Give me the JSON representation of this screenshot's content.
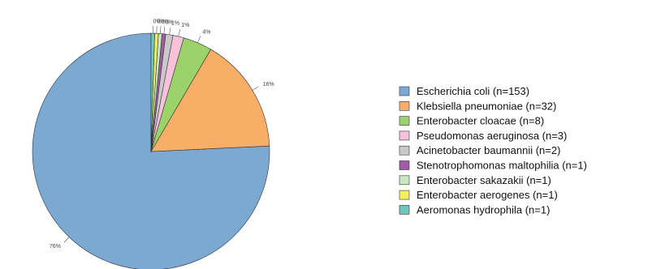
{
  "chart_data": {
    "type": "pie",
    "title": "",
    "legend_position": "right",
    "slices": [
      {
        "name": "Escherichia coli (n=153)",
        "value": 153,
        "pct_label": "76%",
        "color": "#7ba9d2"
      },
      {
        "name": "Klebsiella pneumoniae (n=32)",
        "value": 32,
        "pct_label": "16%",
        "color": "#f9ae67"
      },
      {
        "name": "Enterobacter cloacae (n=8)",
        "value": 8,
        "pct_label": "4%",
        "color": "#9bd36a"
      },
      {
        "name": "Pseudomonas aeruginosa (n=3)",
        "value": 3,
        "pct_label": "1%",
        "color": "#f7c1dc"
      },
      {
        "name": "Acinetobacter baumannii (n=2)",
        "value": 2,
        "pct_label": "1%",
        "color": "#c9c9c9"
      },
      {
        "name": "Stenotrophomonas maltophilia (n=1)",
        "value": 1,
        "pct_label": "0%",
        "color": "#a25ba8"
      },
      {
        "name": "Enterobacter sakazakii (n=1)",
        "value": 1,
        "pct_label": "0%",
        "color": "#c7e8c0"
      },
      {
        "name": "Enterobacter aerogenes (n=1)",
        "value": 1,
        "pct_label": "0%",
        "color": "#f5ef5f"
      },
      {
        "name": "Aeromonas hydrophila (n=1)",
        "value": 1,
        "pct_label": "0%",
        "color": "#6cc7bd"
      }
    ]
  }
}
